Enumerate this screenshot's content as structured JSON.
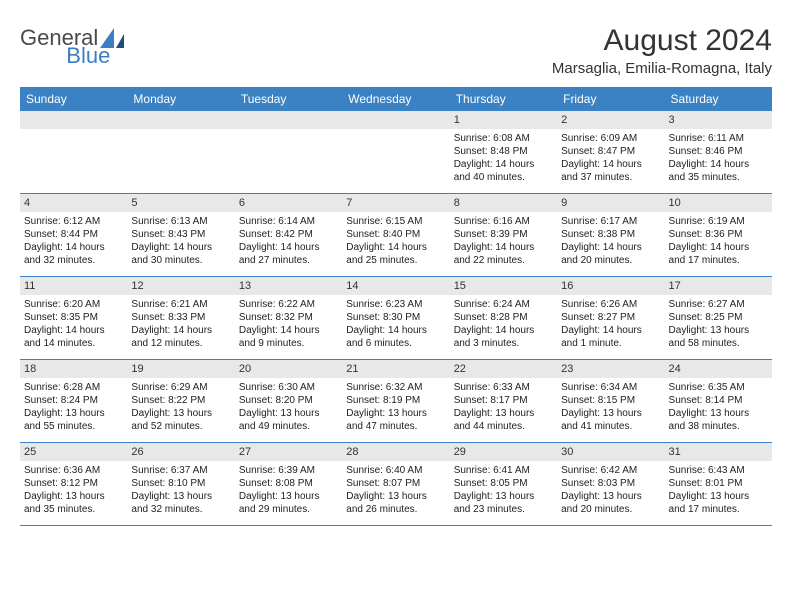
{
  "logo": {
    "text1": "General",
    "text2": "Blue"
  },
  "title": "August 2024",
  "location": "Marsaglia, Emilia-Romagna, Italy",
  "day_headers": [
    "Sunday",
    "Monday",
    "Tuesday",
    "Wednesday",
    "Thursday",
    "Friday",
    "Saturday"
  ],
  "colors": {
    "header_bg": "#3a82c4",
    "header_text": "#ffffff",
    "daynum_bg": "#e8e8e8",
    "border": "#3a82c4"
  },
  "weeks": [
    [
      {
        "num": "",
        "sunrise": "",
        "sunset": "",
        "daylight": ""
      },
      {
        "num": "",
        "sunrise": "",
        "sunset": "",
        "daylight": ""
      },
      {
        "num": "",
        "sunrise": "",
        "sunset": "",
        "daylight": ""
      },
      {
        "num": "",
        "sunrise": "",
        "sunset": "",
        "daylight": ""
      },
      {
        "num": "1",
        "sunrise": "Sunrise: 6:08 AM",
        "sunset": "Sunset: 8:48 PM",
        "daylight": "Daylight: 14 hours and 40 minutes."
      },
      {
        "num": "2",
        "sunrise": "Sunrise: 6:09 AM",
        "sunset": "Sunset: 8:47 PM",
        "daylight": "Daylight: 14 hours and 37 minutes."
      },
      {
        "num": "3",
        "sunrise": "Sunrise: 6:11 AM",
        "sunset": "Sunset: 8:46 PM",
        "daylight": "Daylight: 14 hours and 35 minutes."
      }
    ],
    [
      {
        "num": "4",
        "sunrise": "Sunrise: 6:12 AM",
        "sunset": "Sunset: 8:44 PM",
        "daylight": "Daylight: 14 hours and 32 minutes."
      },
      {
        "num": "5",
        "sunrise": "Sunrise: 6:13 AM",
        "sunset": "Sunset: 8:43 PM",
        "daylight": "Daylight: 14 hours and 30 minutes."
      },
      {
        "num": "6",
        "sunrise": "Sunrise: 6:14 AM",
        "sunset": "Sunset: 8:42 PM",
        "daylight": "Daylight: 14 hours and 27 minutes."
      },
      {
        "num": "7",
        "sunrise": "Sunrise: 6:15 AM",
        "sunset": "Sunset: 8:40 PM",
        "daylight": "Daylight: 14 hours and 25 minutes."
      },
      {
        "num": "8",
        "sunrise": "Sunrise: 6:16 AM",
        "sunset": "Sunset: 8:39 PM",
        "daylight": "Daylight: 14 hours and 22 minutes."
      },
      {
        "num": "9",
        "sunrise": "Sunrise: 6:17 AM",
        "sunset": "Sunset: 8:38 PM",
        "daylight": "Daylight: 14 hours and 20 minutes."
      },
      {
        "num": "10",
        "sunrise": "Sunrise: 6:19 AM",
        "sunset": "Sunset: 8:36 PM",
        "daylight": "Daylight: 14 hours and 17 minutes."
      }
    ],
    [
      {
        "num": "11",
        "sunrise": "Sunrise: 6:20 AM",
        "sunset": "Sunset: 8:35 PM",
        "daylight": "Daylight: 14 hours and 14 minutes."
      },
      {
        "num": "12",
        "sunrise": "Sunrise: 6:21 AM",
        "sunset": "Sunset: 8:33 PM",
        "daylight": "Daylight: 14 hours and 12 minutes."
      },
      {
        "num": "13",
        "sunrise": "Sunrise: 6:22 AM",
        "sunset": "Sunset: 8:32 PM",
        "daylight": "Daylight: 14 hours and 9 minutes."
      },
      {
        "num": "14",
        "sunrise": "Sunrise: 6:23 AM",
        "sunset": "Sunset: 8:30 PM",
        "daylight": "Daylight: 14 hours and 6 minutes."
      },
      {
        "num": "15",
        "sunrise": "Sunrise: 6:24 AM",
        "sunset": "Sunset: 8:28 PM",
        "daylight": "Daylight: 14 hours and 3 minutes."
      },
      {
        "num": "16",
        "sunrise": "Sunrise: 6:26 AM",
        "sunset": "Sunset: 8:27 PM",
        "daylight": "Daylight: 14 hours and 1 minute."
      },
      {
        "num": "17",
        "sunrise": "Sunrise: 6:27 AM",
        "sunset": "Sunset: 8:25 PM",
        "daylight": "Daylight: 13 hours and 58 minutes."
      }
    ],
    [
      {
        "num": "18",
        "sunrise": "Sunrise: 6:28 AM",
        "sunset": "Sunset: 8:24 PM",
        "daylight": "Daylight: 13 hours and 55 minutes."
      },
      {
        "num": "19",
        "sunrise": "Sunrise: 6:29 AM",
        "sunset": "Sunset: 8:22 PM",
        "daylight": "Daylight: 13 hours and 52 minutes."
      },
      {
        "num": "20",
        "sunrise": "Sunrise: 6:30 AM",
        "sunset": "Sunset: 8:20 PM",
        "daylight": "Daylight: 13 hours and 49 minutes."
      },
      {
        "num": "21",
        "sunrise": "Sunrise: 6:32 AM",
        "sunset": "Sunset: 8:19 PM",
        "daylight": "Daylight: 13 hours and 47 minutes."
      },
      {
        "num": "22",
        "sunrise": "Sunrise: 6:33 AM",
        "sunset": "Sunset: 8:17 PM",
        "daylight": "Daylight: 13 hours and 44 minutes."
      },
      {
        "num": "23",
        "sunrise": "Sunrise: 6:34 AM",
        "sunset": "Sunset: 8:15 PM",
        "daylight": "Daylight: 13 hours and 41 minutes."
      },
      {
        "num": "24",
        "sunrise": "Sunrise: 6:35 AM",
        "sunset": "Sunset: 8:14 PM",
        "daylight": "Daylight: 13 hours and 38 minutes."
      }
    ],
    [
      {
        "num": "25",
        "sunrise": "Sunrise: 6:36 AM",
        "sunset": "Sunset: 8:12 PM",
        "daylight": "Daylight: 13 hours and 35 minutes."
      },
      {
        "num": "26",
        "sunrise": "Sunrise: 6:37 AM",
        "sunset": "Sunset: 8:10 PM",
        "daylight": "Daylight: 13 hours and 32 minutes."
      },
      {
        "num": "27",
        "sunrise": "Sunrise: 6:39 AM",
        "sunset": "Sunset: 8:08 PM",
        "daylight": "Daylight: 13 hours and 29 minutes."
      },
      {
        "num": "28",
        "sunrise": "Sunrise: 6:40 AM",
        "sunset": "Sunset: 8:07 PM",
        "daylight": "Daylight: 13 hours and 26 minutes."
      },
      {
        "num": "29",
        "sunrise": "Sunrise: 6:41 AM",
        "sunset": "Sunset: 8:05 PM",
        "daylight": "Daylight: 13 hours and 23 minutes."
      },
      {
        "num": "30",
        "sunrise": "Sunrise: 6:42 AM",
        "sunset": "Sunset: 8:03 PM",
        "daylight": "Daylight: 13 hours and 20 minutes."
      },
      {
        "num": "31",
        "sunrise": "Sunrise: 6:43 AM",
        "sunset": "Sunset: 8:01 PM",
        "daylight": "Daylight: 13 hours and 17 minutes."
      }
    ]
  ]
}
